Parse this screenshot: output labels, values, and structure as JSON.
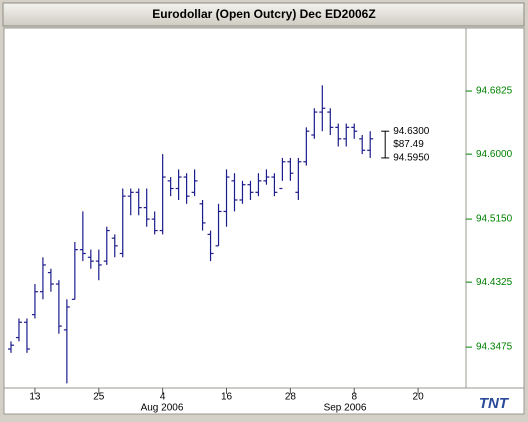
{
  "chart_data": {
    "type": "ohlc",
    "title": "Eurodollar (Open Outcry) Dec ED2006Z",
    "categories": [
      null,
      null,
      null,
      "13",
      null,
      null,
      null,
      null,
      null,
      null,
      null,
      "25",
      null,
      null,
      null,
      null,
      null,
      null,
      null,
      "4",
      null,
      null,
      null,
      null,
      null,
      null,
      null,
      "16",
      null,
      null,
      null,
      null,
      null,
      null,
      null,
      "28",
      null,
      null,
      null,
      null,
      null,
      null,
      null,
      "8",
      null,
      null,
      null,
      null,
      null,
      null,
      null,
      "20",
      null,
      null,
      null,
      null,
      null
    ],
    "x_group_labels": [
      "Aug 2006",
      "Sep 2006"
    ],
    "series": [
      {
        "name": "open",
        "values": [
          94.345,
          94.36,
          94.38,
          94.39,
          94.42,
          94.445,
          94.43,
          94.37,
          94.41,
          94.475,
          94.465,
          94.46,
          94.46,
          94.49,
          94.47,
          94.545,
          94.55,
          94.53,
          94.515,
          94.5,
          94.565,
          94.555,
          94.57,
          94.55,
          94.535,
          94.495,
          94.48,
          94.525,
          94.565,
          94.54,
          94.56,
          94.55,
          94.565,
          94.57,
          94.555,
          94.59,
          94.55,
          94.59,
          94.625,
          94.655,
          94.655,
          94.635,
          94.62,
          94.635,
          94.62,
          94.605,
          null,
          null,
          null,
          null,
          null,
          null,
          null,
          null,
          null,
          null,
          null
        ]
      },
      {
        "name": "high",
        "values": [
          94.355,
          94.385,
          94.385,
          94.43,
          94.465,
          94.45,
          94.435,
          94.41,
          94.485,
          94.525,
          94.475,
          94.475,
          94.505,
          94.495,
          94.555,
          94.555,
          94.555,
          94.555,
          94.525,
          94.6,
          94.57,
          94.58,
          94.575,
          94.58,
          94.54,
          94.5,
          94.535,
          94.58,
          94.575,
          94.565,
          94.565,
          94.575,
          94.58,
          94.575,
          94.595,
          94.595,
          94.595,
          94.635,
          94.66,
          94.69,
          94.66,
          94.64,
          94.64,
          94.64,
          94.625,
          94.63,
          null,
          null,
          null,
          null,
          null,
          null,
          null,
          null,
          null,
          null,
          null
        ]
      },
      {
        "name": "low",
        "values": [
          94.34,
          94.355,
          94.34,
          94.385,
          94.41,
          94.42,
          94.365,
          94.3,
          94.41,
          94.46,
          94.45,
          94.435,
          94.455,
          94.465,
          94.465,
          94.52,
          94.52,
          94.505,
          94.495,
          94.495,
          94.545,
          94.54,
          94.535,
          94.545,
          94.5,
          94.46,
          94.48,
          94.505,
          94.525,
          94.535,
          94.54,
          94.545,
          94.56,
          94.545,
          94.565,
          94.565,
          94.54,
          94.585,
          94.62,
          94.63,
          94.625,
          94.61,
          94.61,
          94.62,
          94.6,
          94.595,
          null,
          null,
          null,
          null,
          null,
          null,
          null,
          null,
          null,
          null,
          null
        ]
      },
      {
        "name": "close",
        "values": [
          94.35,
          94.38,
          94.345,
          94.42,
          94.455,
          94.43,
          94.375,
          94.4,
          94.475,
          94.47,
          94.46,
          94.455,
          94.5,
          94.48,
          94.545,
          94.55,
          94.53,
          94.515,
          94.5,
          94.57,
          94.555,
          94.57,
          94.545,
          94.565,
          94.51,
          94.47,
          94.525,
          94.57,
          94.54,
          94.56,
          94.55,
          94.565,
          94.57,
          94.55,
          94.59,
          94.575,
          94.59,
          94.63,
          94.655,
          94.66,
          94.635,
          94.62,
          94.635,
          94.63,
          94.605,
          94.62,
          null,
          null,
          null,
          null,
          null,
          null,
          null,
          null,
          null,
          null,
          null
        ]
      }
    ],
    "color": "#1c1c8c",
    "ylim": [
      94.294,
      94.765
    ],
    "yticks": [
      94.3475,
      94.4325,
      {
        "value": 94.515,
        "label": "94.5150"
      },
      {
        "value": 94.6,
        "label": "94.6000"
      },
      94.6825
    ],
    "tick_color": "#008000",
    "range_annotation": [
      "94.6300",
      "$87.49",
      "94.5950"
    ],
    "logo": "TNT"
  }
}
